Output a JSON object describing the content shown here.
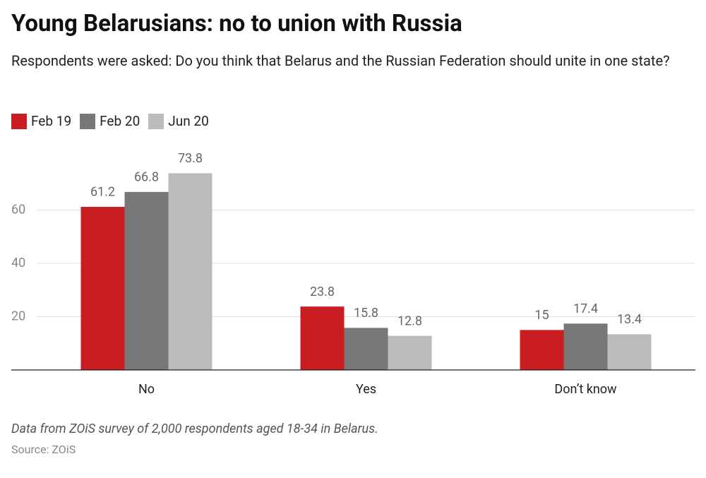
{
  "chart_data": {
    "type": "bar",
    "title": "Young Belarusians: no to union with Russia",
    "subtitle": "Respondents were asked: Do you think that Belarus and the Russian Federation should unite in one state?",
    "categories": [
      "No",
      "Yes",
      "Don’t know"
    ],
    "series": [
      {
        "name": "Feb 19",
        "color": "#c91d22",
        "values": [
          61.2,
          23.8,
          15
        ]
      },
      {
        "name": "Feb 20",
        "color": "#777777",
        "values": [
          66.8,
          15.8,
          17.4
        ]
      },
      {
        "name": "Jun 20",
        "color": "#bbbbbb",
        "values": [
          73.8,
          12.8,
          13.4
        ]
      }
    ],
    "ylim": [
      0,
      80
    ],
    "yticks": [
      20,
      40,
      60
    ],
    "grid": true,
    "note": "Data from ZOiS survey of 2,000 respondents aged 18-34 in Belarus.",
    "source": "Source: ZOiS"
  }
}
